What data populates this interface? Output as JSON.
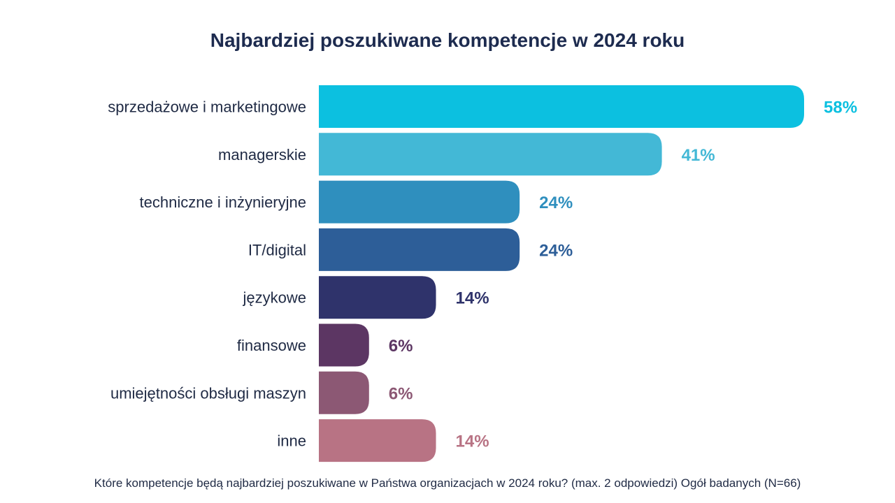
{
  "chart_data": {
    "type": "bar",
    "orientation": "horizontal",
    "title": "Najbardziej poszukiwane kompetencje w 2024 roku",
    "categories": [
      "sprzedażowe i marketingowe",
      "managerskie",
      "techniczne i inżynieryjne",
      "IT/digital",
      "językowe",
      "finansowe",
      "umiejętności obsługi maszyn",
      "inne"
    ],
    "values": [
      58,
      41,
      24,
      24,
      14,
      6,
      6,
      14
    ],
    "value_labels": [
      "58%",
      "41%",
      "24%",
      "24%",
      "14%",
      "6%",
      "6%",
      "14%"
    ],
    "colors": [
      "#0cc0e0",
      "#43b8d6",
      "#2f8fbe",
      "#2d5e98",
      "#2f336b",
      "#5c3663",
      "#8c5874",
      "#b87384"
    ],
    "xlim": [
      0,
      58
    ],
    "grid": false,
    "legend": "none"
  },
  "footnote": "Które kompetencje będą najbardziej poszukiwane w Państwa organizacjach w 2024 roku? (max. 2 odpowiedzi) Ogół badanych (N=66)"
}
